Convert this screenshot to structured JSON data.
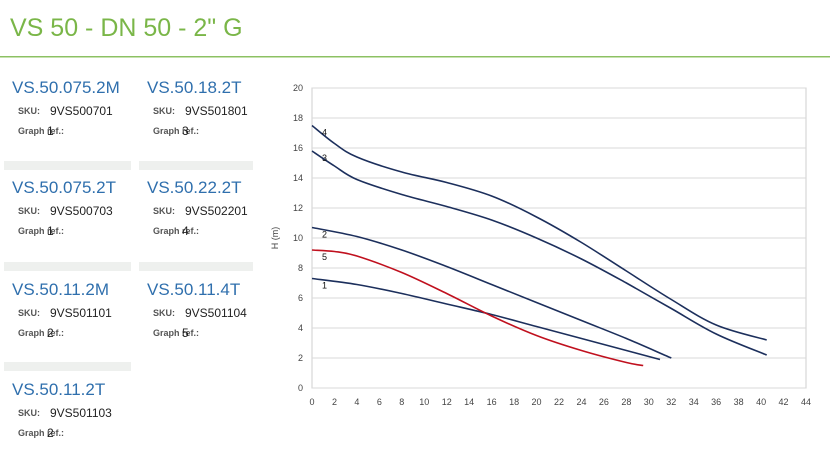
{
  "page": {
    "title": "VS 50 - DN 50 - 2\" G"
  },
  "labels": {
    "sku": "SKU:",
    "graph_ref": "Graph ref.:"
  },
  "products": [
    {
      "name": "VS.50.075.2M",
      "sku": "9VS500701",
      "ref": "1"
    },
    {
      "name": "VS.50.18.2T",
      "sku": "9VS501801",
      "ref": "3"
    },
    {
      "name": "VS.50.075.2T",
      "sku": "9VS500703",
      "ref": "1"
    },
    {
      "name": "VS.50.22.2T",
      "sku": "9VS502201",
      "ref": "4"
    },
    {
      "name": "VS.50.11.2M",
      "sku": "9VS501101",
      "ref": "2"
    },
    {
      "name": "VS.50.11.4T",
      "sku": "9VS501104",
      "ref": "5"
    },
    {
      "name": "VS.50.11.2T",
      "sku": "9VS501103",
      "ref": "2"
    }
  ],
  "colors": {
    "title": "#7ab648",
    "product_name": "#2f6fad",
    "curve_default": "#1c2f5c",
    "curve_highlight": "#c0101e",
    "grid": "#d8d8d8",
    "plot_bg": "#ffffff"
  },
  "chart_data": {
    "type": "line",
    "ylabel": "H (m)",
    "xlabel": "",
    "xlim": [
      0,
      44
    ],
    "ylim": [
      0,
      20
    ],
    "x_ticks": [
      "0",
      "2",
      "4",
      "6",
      "8",
      "10",
      "12",
      "14",
      "16",
      "18",
      "20",
      "22",
      "24",
      "26",
      "28",
      "30",
      "32",
      "34",
      "36",
      "38",
      "40",
      "42",
      "44"
    ],
    "y_ticks": [
      "0",
      "2",
      "4",
      "6",
      "8",
      "10",
      "12",
      "14",
      "16",
      "18",
      "20"
    ],
    "grid": "horizontal",
    "series": [
      {
        "name": "1",
        "highlight": false,
        "points": [
          [
            0,
            7.3
          ],
          [
            4,
            6.9
          ],
          [
            8,
            6.3
          ],
          [
            12,
            5.6
          ],
          [
            16,
            4.9
          ],
          [
            20,
            4.1
          ],
          [
            24,
            3.3
          ],
          [
            28,
            2.5
          ],
          [
            31,
            1.9
          ]
        ]
      },
      {
        "name": "2",
        "highlight": false,
        "points": [
          [
            0,
            10.7
          ],
          [
            4,
            10.1
          ],
          [
            8,
            9.2
          ],
          [
            12,
            8.1
          ],
          [
            16,
            6.9
          ],
          [
            20,
            5.7
          ],
          [
            24,
            4.5
          ],
          [
            28,
            3.3
          ],
          [
            32,
            2.0
          ]
        ]
      },
      {
        "name": "3",
        "highlight": false,
        "points": [
          [
            0,
            15.8
          ],
          [
            2,
            14.8
          ],
          [
            4,
            13.9
          ],
          [
            8,
            12.9
          ],
          [
            12,
            12.1
          ],
          [
            16,
            11.2
          ],
          [
            20,
            10.0
          ],
          [
            24,
            8.6
          ],
          [
            28,
            7.0
          ],
          [
            32,
            5.3
          ],
          [
            36,
            3.6
          ],
          [
            40.5,
            2.2
          ]
        ]
      },
      {
        "name": "4",
        "highlight": false,
        "points": [
          [
            0,
            17.5
          ],
          [
            2,
            16.3
          ],
          [
            4,
            15.4
          ],
          [
            8,
            14.4
          ],
          [
            12,
            13.7
          ],
          [
            16,
            12.8
          ],
          [
            20,
            11.4
          ],
          [
            24,
            9.7
          ],
          [
            28,
            7.8
          ],
          [
            32,
            5.9
          ],
          [
            36,
            4.2
          ],
          [
            40.5,
            3.2
          ]
        ]
      },
      {
        "name": "5",
        "highlight": true,
        "points": [
          [
            0,
            9.2
          ],
          [
            2,
            9.1
          ],
          [
            4,
            8.8
          ],
          [
            8,
            7.7
          ],
          [
            12,
            6.3
          ],
          [
            16,
            4.8
          ],
          [
            20,
            3.5
          ],
          [
            24,
            2.5
          ],
          [
            28,
            1.7
          ],
          [
            29.5,
            1.5
          ]
        ]
      }
    ]
  }
}
